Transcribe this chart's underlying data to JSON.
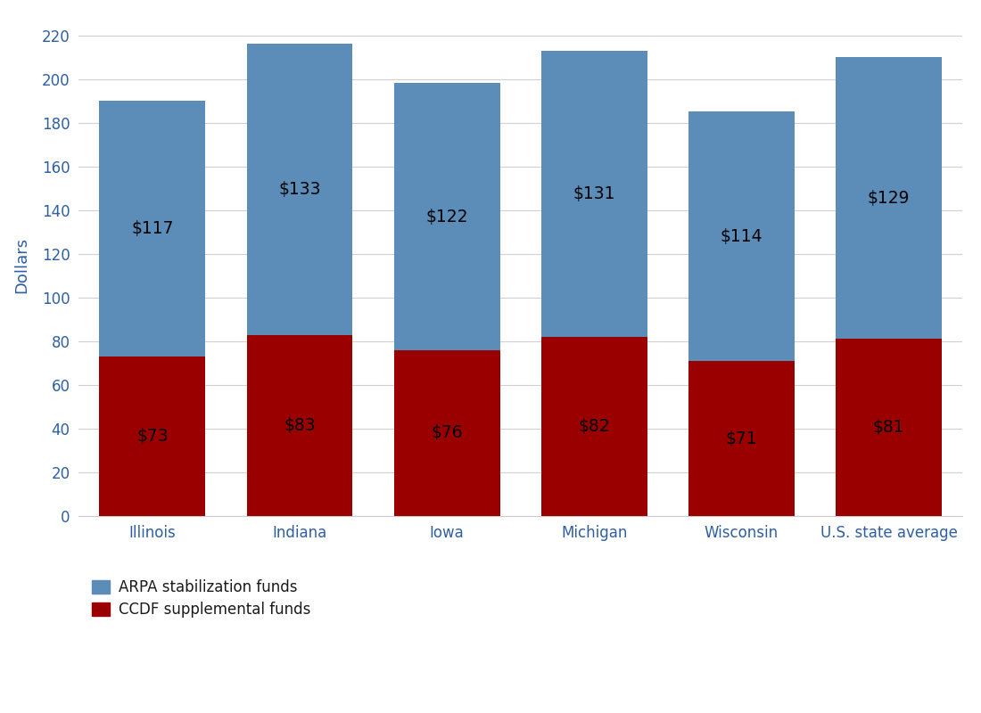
{
  "categories": [
    "Illinois",
    "Indiana",
    "Iowa",
    "Michigan",
    "Wisconsin",
    "U.S. state average"
  ],
  "arpa_values": [
    117,
    133,
    122,
    131,
    114,
    129
  ],
  "ccdf_values": [
    73,
    83,
    76,
    82,
    71,
    81
  ],
  "arpa_color": "#5b8db8",
  "ccdf_color": "#9b0000",
  "ylabel": "Dollars",
  "ylim": [
    0,
    230
  ],
  "yticks": [
    0,
    20,
    40,
    60,
    80,
    100,
    120,
    140,
    160,
    180,
    200,
    220
  ],
  "legend_arpa": "ARPA stabilization funds",
  "legend_ccdf": "CCDF supplemental funds",
  "background_color": "#ffffff",
  "grid_color": "#d0d0d0",
  "bar_width": 0.72,
  "annotation_fontsize": 13.5,
  "annotation_color": "#000000",
  "ylabel_color": "#2e5fa3",
  "tick_label_color": "#2e5fa3",
  "xlabel_fontsize": 12,
  "ylabel_fontsize": 13
}
